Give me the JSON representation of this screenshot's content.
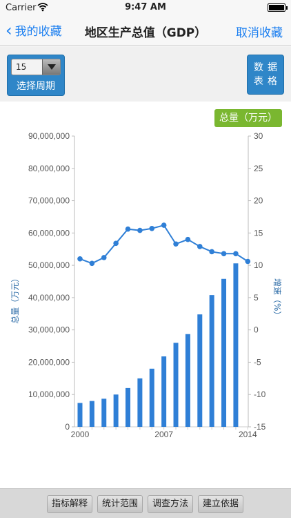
{
  "status_bar": {
    "carrier": "Carrier",
    "time": "9:47 AM"
  },
  "nav": {
    "back_label": "我的收藏",
    "title": "地区生产总值（GDP）",
    "right_label": "取消收藏"
  },
  "toolbar": {
    "period_value": "15",
    "period_label": "选择周期",
    "table_button": "数据表格"
  },
  "legend": {
    "total_label": "总量（万元）"
  },
  "bottom": {
    "buttons": [
      "指标解释",
      "统计范围",
      "调查方法",
      "建立依据"
    ]
  },
  "colors": {
    "accent": "#1a7ef0",
    "bar": "#2f7fd6",
    "line": "#2f7fd6",
    "legend_green": "#7ab730"
  },
  "chart_data": {
    "type": "bar",
    "categories": [
      "2000",
      "2001",
      "2002",
      "2003",
      "2004",
      "2005",
      "2006",
      "2007",
      "2008",
      "2009",
      "2010",
      "2011",
      "2012",
      "2013",
      "2014"
    ],
    "x_tick_labels": [
      "2000",
      "2007",
      "2014"
    ],
    "series": [
      {
        "type": "bar",
        "axis": "left",
        "values": [
          7400000,
          8000000,
          8700000,
          10000000,
          12000000,
          15000000,
          18000000,
          21800000,
          26000000,
          28700000,
          34800000,
          40800000,
          45800000,
          50600000,
          0
        ]
      },
      {
        "type": "line",
        "axis": "right",
        "values": [
          11.0,
          10.3,
          11.2,
          13.4,
          15.6,
          15.4,
          15.7,
          16.2,
          13.3,
          14.0,
          12.9,
          12.1,
          11.8,
          11.8,
          10.6
        ]
      }
    ],
    "ylabel_left": "总量（万元）",
    "ylabel_right": "增速（%）",
    "ylim_left": [
      0,
      90000000
    ],
    "ylim_right": [
      -15,
      30
    ],
    "yticks_left": [
      "0",
      "10,000,000",
      "20,000,000",
      "30,000,000",
      "40,000,000",
      "50,000,000",
      "60,000,000",
      "70,000,000",
      "80,000,000",
      "90,000,000"
    ],
    "yticks_right": [
      "-15",
      "-10",
      "-5",
      "0",
      "5",
      "10",
      "15",
      "20",
      "25",
      "30"
    ]
  }
}
